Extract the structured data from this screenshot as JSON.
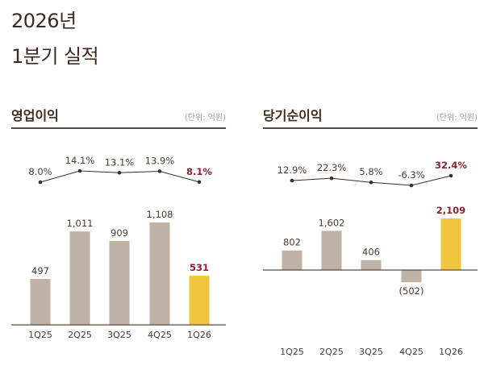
{
  "header": {
    "year": "2026년",
    "subtitle": "1분기 실적"
  },
  "colors": {
    "bar": "#bfb2a7",
    "highlight": "#f0c53d",
    "highlight_text": "#8b2332",
    "text": "#4a3c31",
    "line": "#3a2f25",
    "axis": "#5a4a3e"
  },
  "chart_data": [
    {
      "type": "bar",
      "title": "영업이익",
      "unit": "(단위: 억원)",
      "categories": [
        "1Q25",
        "2Q25",
        "3Q25",
        "4Q25",
        "1Q26"
      ],
      "values": [
        497,
        1011,
        909,
        1108,
        531
      ],
      "value_labels": [
        "497",
        "1,011",
        "909",
        "1,108",
        "531"
      ],
      "highlight_index": 4,
      "margin_line": {
        "type": "line",
        "values": [
          8.0,
          14.1,
          13.1,
          13.9,
          8.1
        ],
        "labels": [
          "8.0%",
          "14.1%",
          "13.1%",
          "13.9%",
          "8.1%"
        ]
      }
    },
    {
      "type": "bar",
      "title": "당기순이익",
      "unit": "(단위: 억원)",
      "categories": [
        "1Q25",
        "2Q25",
        "3Q25",
        "4Q25",
        "1Q26"
      ],
      "values": [
        802,
        1602,
        406,
        -502,
        2109
      ],
      "value_labels": [
        "802",
        "1,602",
        "406",
        "(502)",
        "2,109"
      ],
      "highlight_index": 4,
      "margin_line": {
        "type": "line",
        "values": [
          12.9,
          22.3,
          5.8,
          -6.3,
          32.4
        ],
        "labels": [
          "12.9%",
          "22.3%",
          "5.8%",
          "-6.3%",
          "32.4%"
        ]
      }
    }
  ]
}
